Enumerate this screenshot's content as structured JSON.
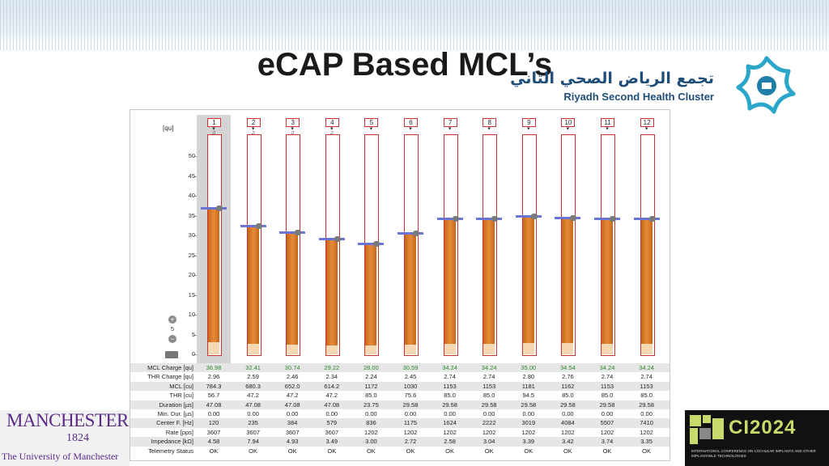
{
  "slide": {
    "title": "eCAP Based MCL’s"
  },
  "logo": {
    "arabic": "تجمع الرياض الصحي الثاني",
    "english": "Riyadh Second Health Cluster",
    "icon": "star-logo-icon"
  },
  "panel": {
    "unit": "[qu]",
    "y_ticks": [
      "50",
      "45",
      "40",
      "35",
      "30",
      "25",
      "20",
      "15",
      "10",
      "5",
      "0"
    ],
    "zoom_value": "5",
    "channels": [
      "1",
      "2",
      "3",
      "4",
      "5",
      "6",
      "7",
      "8",
      "9",
      "10",
      "11",
      "12"
    ],
    "mcl_levels": [
      36.98,
      32.41,
      30.74,
      29.22,
      28.0,
      30.59,
      34.24,
      34.24,
      35.0,
      34.54,
      34.24,
      34.24
    ],
    "thr_levels": [
      2.96,
      2.59,
      2.46,
      2.34,
      2.24,
      2.45,
      2.74,
      2.74,
      2.8,
      2.76,
      2.74,
      2.74
    ],
    "rows": [
      {
        "label": "MCL Charge [qu]",
        "values": [
          "36.98",
          "32.41",
          "30.74",
          "29.22",
          "28.00",
          "30.59",
          "34.24",
          "34.24",
          "35.00",
          "34.54",
          "34.24",
          "34.24"
        ],
        "color": "#2a8a2a"
      },
      {
        "label": "THR Charge [qu]",
        "values": [
          "2.96",
          "2.59",
          "2.46",
          "2.34",
          "2.24",
          "2.45",
          "2.74",
          "2.74",
          "2.80",
          "2.76",
          "2.74",
          "2.74"
        ]
      },
      {
        "label": "MCL [cu]",
        "values": [
          "784.3",
          "680.3",
          "652.0",
          "614.2",
          "1172",
          "1030",
          "1153",
          "1153",
          "1181",
          "1162",
          "1153",
          "1153"
        ]
      },
      {
        "label": "THR [cu]",
        "values": [
          "56.7",
          "47.2",
          "47.2",
          "47.2",
          "85.0",
          "75.6",
          "85.0",
          "85.0",
          "94.5",
          "85.0",
          "85.0",
          "85.0"
        ]
      },
      {
        "label": "Duration [µs]",
        "values": [
          "47.08",
          "47.08",
          "47.08",
          "47.08",
          "23.75",
          "29.58",
          "29.58",
          "29.58",
          "29.58",
          "29.58",
          "29.58",
          "29.58"
        ]
      },
      {
        "label": "Min. Dur. [µs]",
        "values": [
          "0.00",
          "0.00",
          "0.00",
          "0.00",
          "0.00",
          "0.00",
          "0.00",
          "0.00",
          "0.00",
          "0.00",
          "0.00",
          "0.00"
        ]
      },
      {
        "label": "Center F. [Hz]",
        "values": [
          "120",
          "235",
          "384",
          "579",
          "836",
          "1175",
          "1624",
          "2222",
          "3019",
          "4084",
          "5507",
          "7410"
        ]
      },
      {
        "label": "Rate [pps]",
        "values": [
          "3607",
          "3607",
          "3607",
          "3607",
          "1202",
          "1202",
          "1202",
          "1202",
          "1202",
          "1202",
          "1202",
          "1202"
        ]
      },
      {
        "label": "Impedance [kΩ]",
        "values": [
          "4.58",
          "7.94",
          "4.93",
          "3.49",
          "3.00",
          "2.72",
          "2.58",
          "3.04",
          "3.39",
          "3.42",
          "3.74",
          "3.35"
        ]
      },
      {
        "label": "Telemetry Status",
        "values": [
          "OK",
          "OK",
          "OK",
          "OK",
          "OK",
          "OK",
          "OK",
          "OK",
          "OK",
          "OK",
          "OK",
          "OK"
        ]
      }
    ]
  },
  "footer": {
    "manchester_name": "MANCHESTER",
    "manchester_year": "1824",
    "manchester_univ": "The University of Manchester",
    "ci_title": "CI2024",
    "ci_subtitle": "INTERNATIONAL CONFERENCE ON COCHLEAR IMPLANTS AND OTHER IMPLANTABLE TECHNOLOGIES"
  }
}
